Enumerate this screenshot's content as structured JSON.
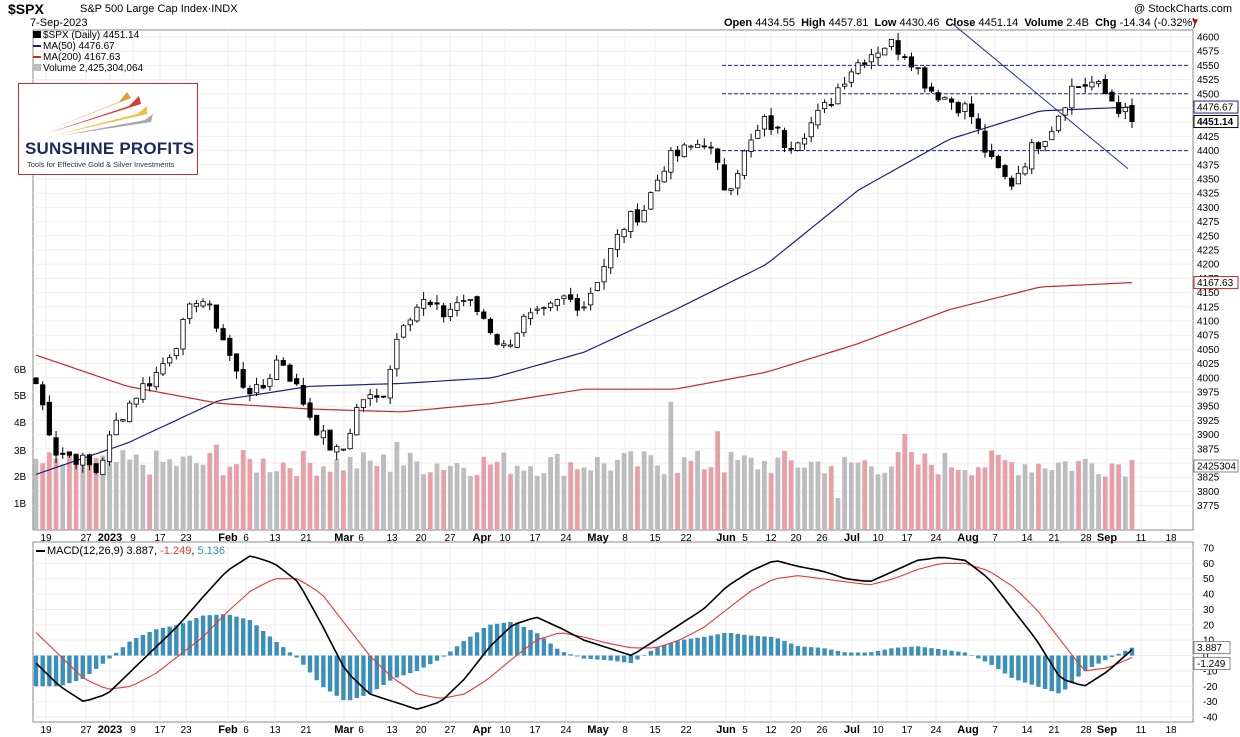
{
  "header": {
    "symbol": "$SPX",
    "name": "S&P 500 Large Cap Index",
    "exchange": "INDX",
    "date": "7-Sep-2023",
    "site": "@ StockCharts.com",
    "open_label": "Open",
    "open": "4434.55",
    "high_label": "High",
    "high": "4457.81",
    "low_label": "Low",
    "low": "4430.46",
    "close_label": "Close",
    "close": "4451.14",
    "volume_label": "Volume",
    "volume": "2.4B",
    "chg_label": "Chg",
    "chg": "-14.34 (-0.32%)"
  },
  "legend": {
    "price": "$SPX (Daily) 4451.14",
    "ma50": "MA(50) 4476.67",
    "ma200": "MA(200) 4167.63",
    "volume": "Volume 2,425,304,064"
  },
  "logo": {
    "title": "SUNSHINE PROFITS",
    "tagline": "Tools for Effective Gold & Silver Investments"
  },
  "macd_legend": {
    "label": "MACD(12,26,9)",
    "macd": "3.887",
    "signal": "-1.249",
    "hist": "5.136"
  },
  "colors": {
    "ma50": "#1a237e",
    "ma200": "#c62828",
    "trendline": "#283593",
    "resistance": "#1a237e",
    "vol_up": "#bdbdbd",
    "vol_down": "#e8a0a8",
    "hist": "#3b8fb8",
    "macd": "#000000",
    "signal": "#e53935"
  },
  "chart_data": [
    {
      "type": "candlestick",
      "title": "$SPX S&P 500 Large Cap Index",
      "ylim": [
        3750,
        4610
      ],
      "y_ticks": [
        "4600",
        "4575",
        "4550",
        "4525",
        "4500",
        "4475",
        "4450",
        "4425",
        "4400",
        "4375",
        "4350",
        "4325",
        "4300",
        "4275",
        "4250",
        "4225",
        "4200",
        "4175",
        "4150",
        "4125",
        "4100",
        "4075",
        "4050",
        "4025",
        "4000",
        "3975",
        "3950",
        "3925",
        "3900",
        "3875",
        "3850",
        "3825",
        "3800",
        "3775"
      ],
      "x_ticks": [
        "19",
        "27",
        "2023",
        "9",
        "17",
        "23",
        "Feb",
        "6",
        "13",
        "21",
        "Mar",
        "6",
        "13",
        "20",
        "27",
        "Apr",
        "10",
        "17",
        "24",
        "May",
        "8",
        "15",
        "22",
        "Jun",
        "5",
        "12",
        "20",
        "26",
        "Jul",
        "10",
        "17",
        "24",
        "Aug",
        "7",
        "14",
        "21",
        "28",
        "Sep",
        "11",
        "18"
      ],
      "x_ticks_bold": [
        "2023",
        "Feb",
        "Mar",
        "Apr",
        "May",
        "Jun",
        "Jul",
        "Aug",
        "Sep"
      ],
      "price_tags": {
        "ma50": "4476.67",
        "close": "4451.14",
        "ma200": "4167.63",
        "volume": "2425304"
      },
      "volume_ticks": [
        "6B",
        "5B",
        "4B",
        "3B",
        "2B",
        "1B"
      ],
      "horizontal_levels": [
        4550,
        4500,
        4400
      ],
      "trendline": {
        "from_close": 4610,
        "to_close": 4368
      },
      "series": [
        {
          "name": "MA(50)",
          "values_anchor": [
            3830,
            3885,
            3960,
            3985,
            3990,
            4000,
            4045,
            4120,
            4200,
            4330,
            4420,
            4470,
            4476.67
          ]
        },
        {
          "name": "MA(200)",
          "values_anchor": [
            4040,
            3985,
            3955,
            3945,
            3940,
            3955,
            3980,
            3980,
            4010,
            4060,
            4120,
            4160,
            4167.63
          ]
        }
      ],
      "close_path": [
        3990,
        3870,
        3860,
        3835,
        3925,
        3975,
        4010,
        4070,
        4150,
        4090,
        3995,
        3970,
        4040,
        3970,
        3900,
        3860,
        3965,
        3960,
        4100,
        4135,
        4110,
        4140,
        4110,
        4050,
        4100,
        4110,
        4140,
        4130,
        4200,
        4270,
        4300,
        4380,
        4400,
        4420,
        4330,
        4400,
        4455,
        4410,
        4440,
        4480,
        4540,
        4570,
        4590,
        4570,
        4510,
        4490,
        4470,
        4380,
        4340,
        4400,
        4440,
        4510,
        4520,
        4490,
        4451.14
      ]
    },
    {
      "type": "line",
      "title": "MACD(12,26,9)",
      "ylim": [
        -40,
        70
      ],
      "y_ticks": [
        "70",
        "60",
        "50",
        "40",
        "30",
        "20",
        "10",
        "0",
        "-10",
        "-20",
        "-30",
        "-40"
      ],
      "price_tags": {
        "macd": "3.887",
        "signal": "-1.249"
      },
      "series": [
        {
          "name": "MACD",
          "values": [
            -5,
            -20,
            -30,
            -25,
            -10,
            5,
            20,
            38,
            55,
            65,
            60,
            48,
            20,
            -10,
            -25,
            -30,
            -35,
            -30,
            -15,
            5,
            20,
            25,
            18,
            10,
            5,
            0,
            10,
            20,
            30,
            45,
            55,
            62,
            58,
            55,
            50,
            48,
            55,
            62,
            64,
            62,
            50,
            30,
            10,
            -15,
            -20,
            -10,
            3.887
          ]
        },
        {
          "name": "Signal",
          "values": [
            15,
            0,
            -15,
            -22,
            -20,
            -12,
            0,
            12,
            28,
            42,
            50,
            50,
            40,
            20,
            0,
            -15,
            -25,
            -28,
            -25,
            -15,
            -2,
            10,
            15,
            12,
            8,
            5,
            5,
            10,
            18,
            30,
            42,
            50,
            52,
            50,
            48,
            46,
            50,
            56,
            60,
            60,
            55,
            45,
            30,
            10,
            -10,
            -8,
            -1.249
          ]
        },
        {
          "name": "Histogram",
          "values": [
            -20,
            -20,
            -15,
            -3,
            10,
            17,
            20,
            26,
            27,
            23,
            10,
            -2,
            -20,
            -30,
            -25,
            -15,
            -10,
            -2,
            10,
            20,
            22,
            15,
            3,
            -2,
            -3,
            -5,
            5,
            10,
            12,
            15,
            13,
            12,
            6,
            5,
            2,
            2,
            5,
            6,
            4,
            2,
            -5,
            -15,
            -20,
            -25,
            -10,
            -2,
            5.136
          ]
        }
      ]
    }
  ]
}
